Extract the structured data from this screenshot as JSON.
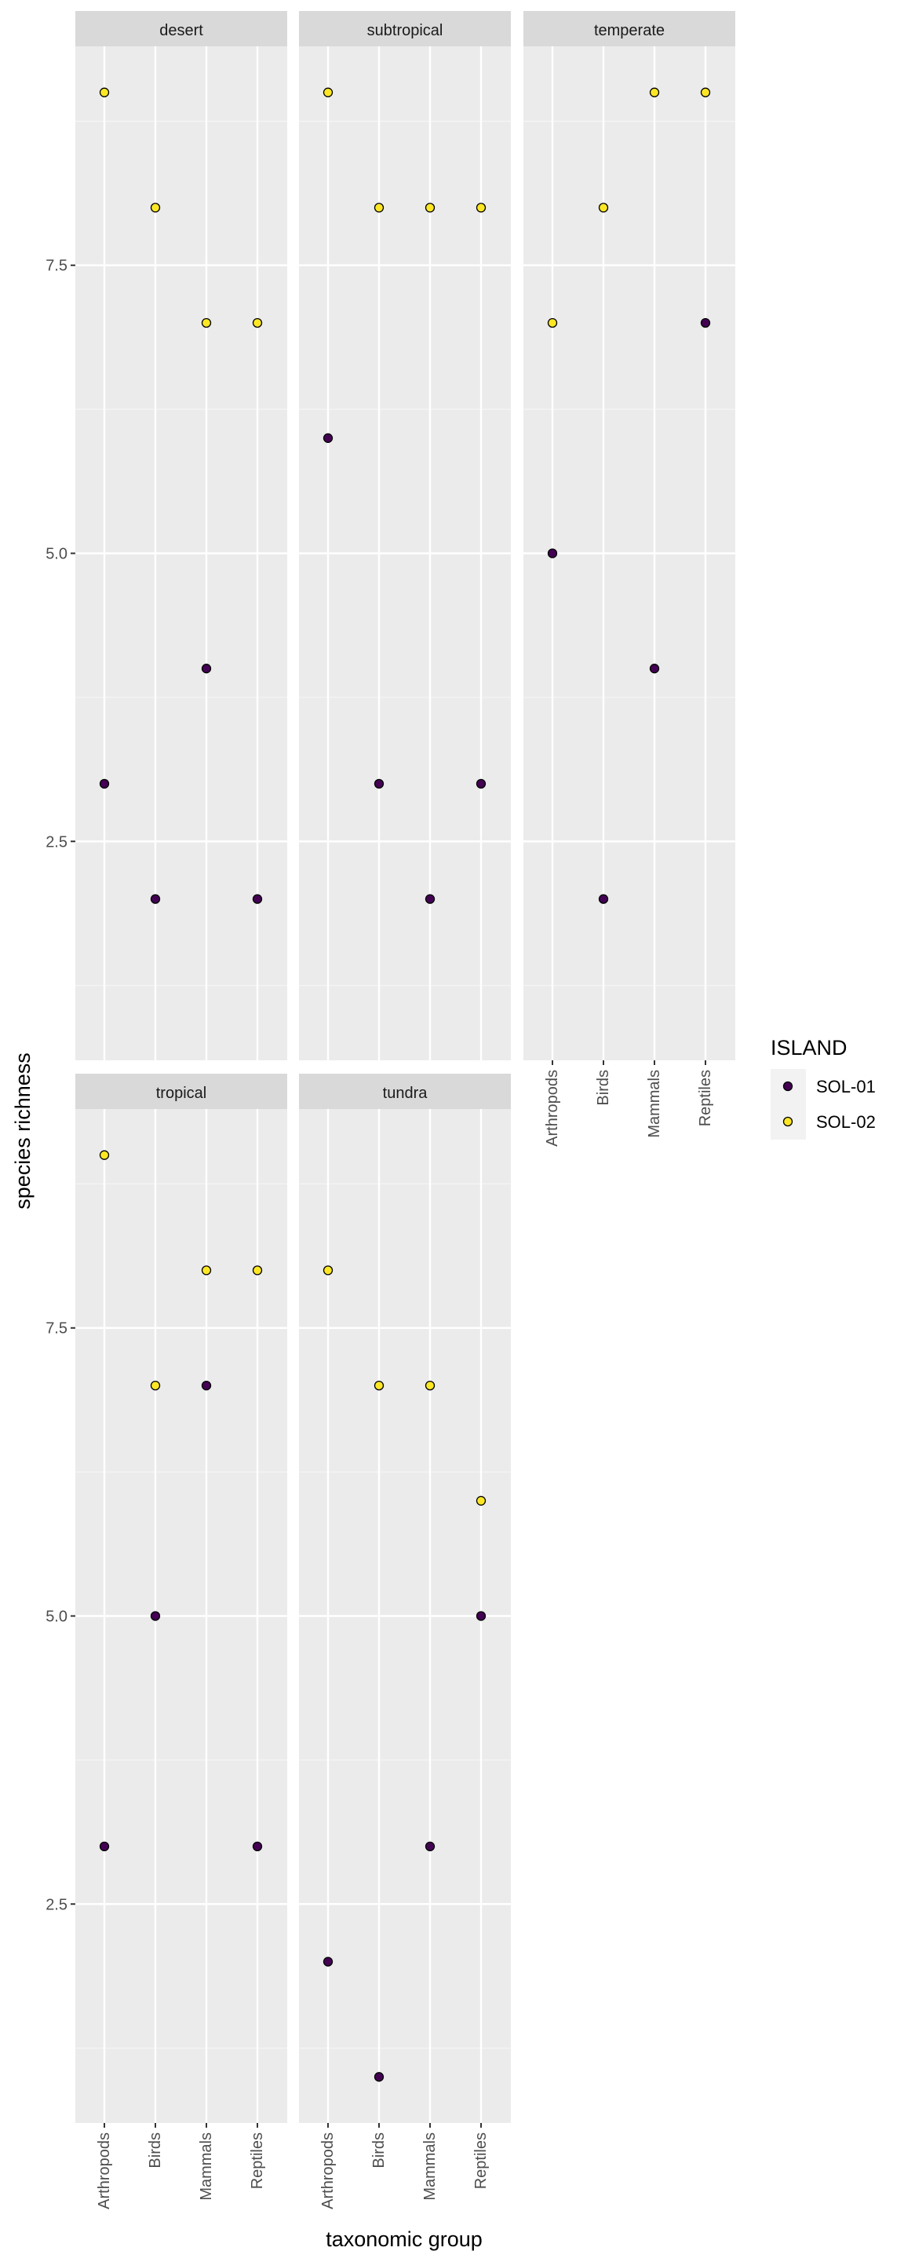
{
  "chart_data": {
    "type": "scatter",
    "xlabel": "taxonomic group",
    "ylabel": "species richness",
    "categories": [
      "Arthropods",
      "Birds",
      "Mammals",
      "Reptiles"
    ],
    "y_ticks": [
      2.5,
      5.0,
      7.5
    ],
    "y_tick_labels": [
      "2.5",
      "5.0",
      "7.5"
    ],
    "ylim": [
      0.6,
      9.4
    ],
    "grid": true,
    "legend": {
      "title": "ISLAND",
      "position": "right",
      "entries": [
        {
          "name": "SOL-01",
          "color": "#440154"
        },
        {
          "name": "SOL-02",
          "color": "#FDE725"
        }
      ]
    },
    "panels": [
      {
        "name": "desert",
        "series": [
          {
            "name": "SOL-01",
            "values": [
              3,
              2,
              4,
              2
            ]
          },
          {
            "name": "SOL-02",
            "values": [
              9,
              8,
              7,
              7
            ]
          }
        ]
      },
      {
        "name": "subtropical",
        "series": [
          {
            "name": "SOL-01",
            "values": [
              6,
              3,
              2,
              3
            ]
          },
          {
            "name": "SOL-02",
            "values": [
              9,
              8,
              8,
              8
            ]
          }
        ]
      },
      {
        "name": "temperate",
        "series": [
          {
            "name": "SOL-01",
            "values": [
              5,
              2,
              4,
              7
            ]
          },
          {
            "name": "SOL-02",
            "values": [
              7,
              8,
              9,
              9
            ]
          }
        ]
      },
      {
        "name": "tropical",
        "series": [
          {
            "name": "SOL-01",
            "values": [
              3,
              5,
              7,
              3
            ]
          },
          {
            "name": "SOL-02",
            "values": [
              9,
              7,
              8,
              8
            ]
          }
        ]
      },
      {
        "name": "tundra",
        "series": [
          {
            "name": "SOL-01",
            "values": [
              2,
              1,
              3,
              5
            ]
          },
          {
            "name": "SOL-02",
            "values": [
              8,
              7,
              7,
              6
            ]
          }
        ]
      }
    ]
  }
}
